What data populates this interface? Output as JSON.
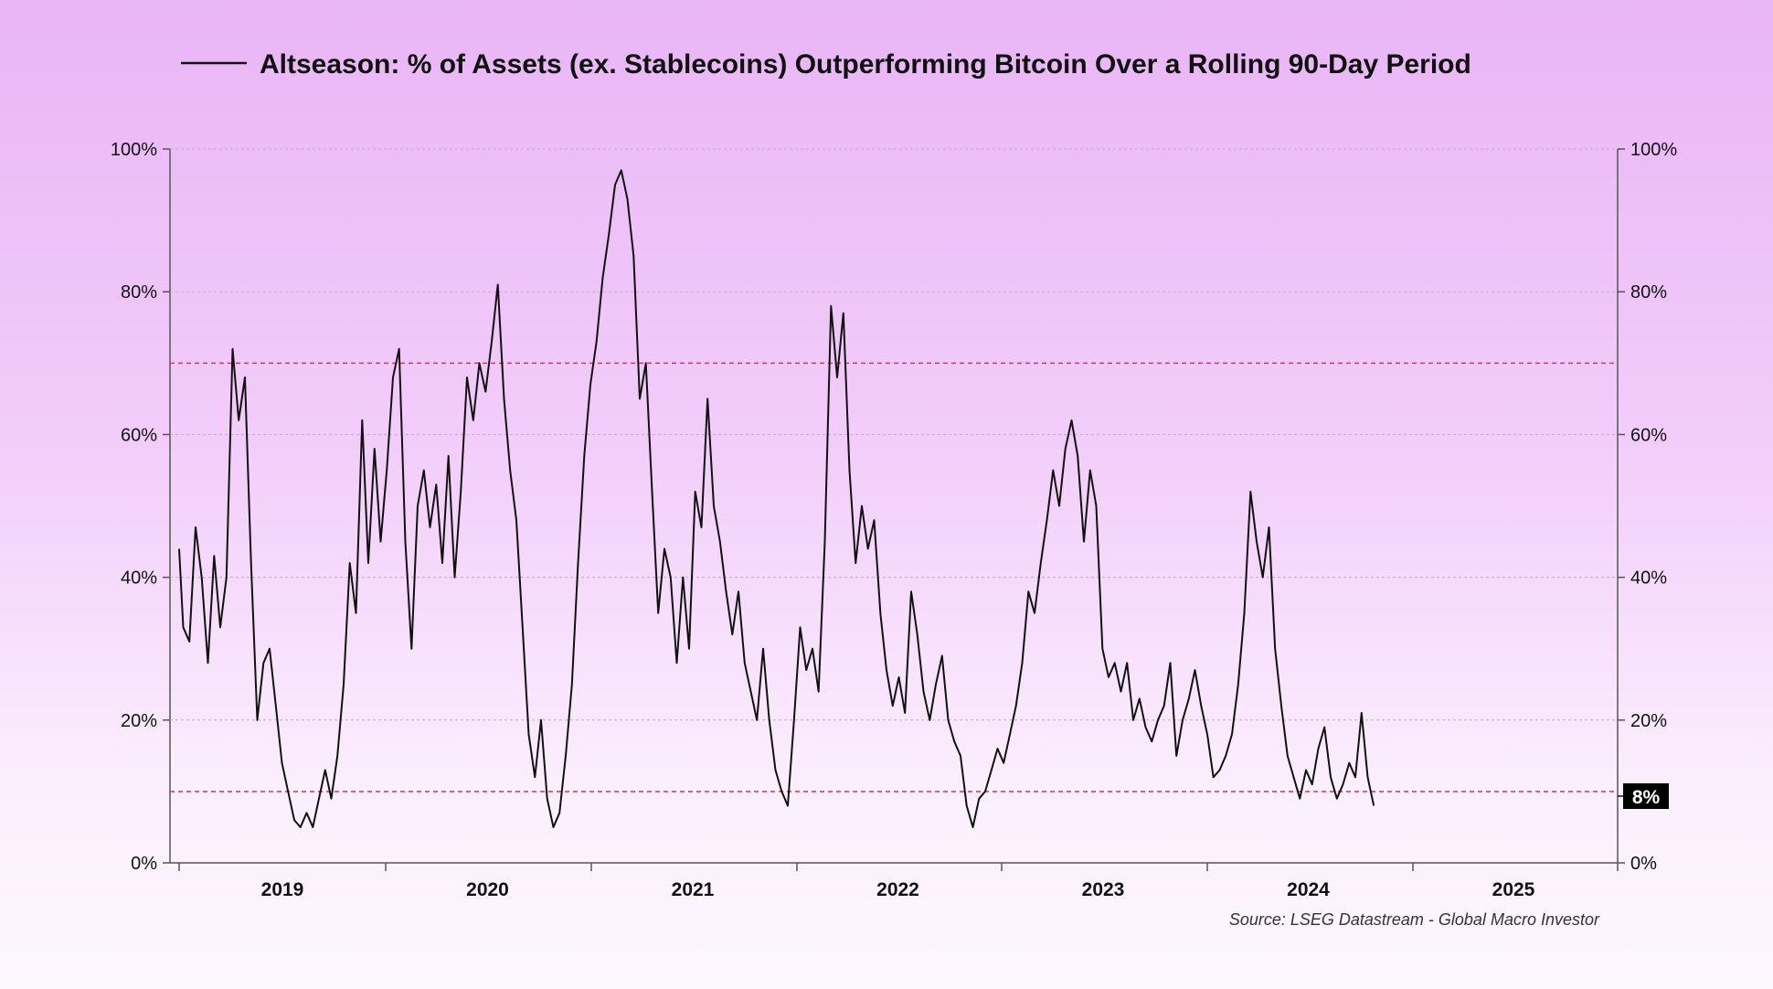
{
  "chart_data": {
    "type": "line",
    "title": "Altseason: % of Assets (ex. Stablecoins) Outperforming Bitcoin Over a Rolling 90-Day Period",
    "source": "Source: LSEG Datastream - Global Macro Investor",
    "ylim": [
      0,
      100
    ],
    "yticks": [
      {
        "value": 0,
        "label": "0%"
      },
      {
        "value": 20,
        "label": "20%"
      },
      {
        "value": 40,
        "label": "40%"
      },
      {
        "value": 60,
        "label": "60%"
      },
      {
        "value": 80,
        "label": "80%"
      },
      {
        "value": 100,
        "label": "100%"
      }
    ],
    "xlim": [
      2018.5,
      2025.5
    ],
    "x_year_labels": [
      "2019",
      "2020",
      "2021",
      "2022",
      "2023",
      "2024",
      "2025"
    ],
    "reference_lines": [
      {
        "value": 70,
        "color": "#e0405a"
      },
      {
        "value": 10,
        "color": "#e0405a"
      }
    ],
    "last_value_badge": "8%",
    "series": [
      {
        "name": "Altseason %",
        "color": "#111111",
        "points": [
          [
            2018.5,
            44
          ],
          [
            2018.52,
            33
          ],
          [
            2018.55,
            31
          ],
          [
            2018.58,
            47
          ],
          [
            2018.61,
            40
          ],
          [
            2018.64,
            28
          ],
          [
            2018.67,
            43
          ],
          [
            2018.7,
            33
          ],
          [
            2018.73,
            40
          ],
          [
            2018.76,
            72
          ],
          [
            2018.79,
            62
          ],
          [
            2018.82,
            68
          ],
          [
            2018.85,
            42
          ],
          [
            2018.88,
            20
          ],
          [
            2018.91,
            28
          ],
          [
            2018.94,
            30
          ],
          [
            2018.97,
            22
          ],
          [
            2019.0,
            14
          ],
          [
            2019.03,
            10
          ],
          [
            2019.06,
            6
          ],
          [
            2019.09,
            5
          ],
          [
            2019.12,
            7
          ],
          [
            2019.15,
            5
          ],
          [
            2019.18,
            9
          ],
          [
            2019.21,
            13
          ],
          [
            2019.24,
            9
          ],
          [
            2019.27,
            15
          ],
          [
            2019.3,
            25
          ],
          [
            2019.33,
            42
          ],
          [
            2019.36,
            35
          ],
          [
            2019.39,
            62
          ],
          [
            2019.42,
            42
          ],
          [
            2019.45,
            58
          ],
          [
            2019.48,
            45
          ],
          [
            2019.51,
            55
          ],
          [
            2019.54,
            68
          ],
          [
            2019.57,
            72
          ],
          [
            2019.6,
            45
          ],
          [
            2019.63,
            30
          ],
          [
            2019.66,
            50
          ],
          [
            2019.69,
            55
          ],
          [
            2019.72,
            47
          ],
          [
            2019.75,
            53
          ],
          [
            2019.78,
            42
          ],
          [
            2019.81,
            57
          ],
          [
            2019.84,
            40
          ],
          [
            2019.87,
            52
          ],
          [
            2019.9,
            68
          ],
          [
            2019.93,
            62
          ],
          [
            2019.96,
            70
          ],
          [
            2019.99,
            66
          ],
          [
            2020.02,
            73
          ],
          [
            2020.05,
            81
          ],
          [
            2020.08,
            65
          ],
          [
            2020.11,
            55
          ],
          [
            2020.14,
            48
          ],
          [
            2020.17,
            33
          ],
          [
            2020.2,
            18
          ],
          [
            2020.23,
            12
          ],
          [
            2020.26,
            20
          ],
          [
            2020.29,
            9
          ],
          [
            2020.32,
            5
          ],
          [
            2020.35,
            7
          ],
          [
            2020.38,
            15
          ],
          [
            2020.41,
            25
          ],
          [
            2020.44,
            42
          ],
          [
            2020.47,
            57
          ],
          [
            2020.5,
            67
          ],
          [
            2020.53,
            73
          ],
          [
            2020.56,
            82
          ],
          [
            2020.59,
            88
          ],
          [
            2020.62,
            95
          ],
          [
            2020.65,
            97
          ],
          [
            2020.68,
            93
          ],
          [
            2020.71,
            85
          ],
          [
            2020.74,
            65
          ],
          [
            2020.77,
            70
          ],
          [
            2020.8,
            52
          ],
          [
            2020.83,
            35
          ],
          [
            2020.86,
            44
          ],
          [
            2020.89,
            40
          ],
          [
            2020.92,
            28
          ],
          [
            2020.95,
            40
          ],
          [
            2020.98,
            30
          ],
          [
            2021.01,
            52
          ],
          [
            2021.04,
            47
          ],
          [
            2021.07,
            65
          ],
          [
            2021.1,
            50
          ],
          [
            2021.13,
            45
          ],
          [
            2021.16,
            38
          ],
          [
            2021.19,
            32
          ],
          [
            2021.22,
            38
          ],
          [
            2021.25,
            28
          ],
          [
            2021.28,
            24
          ],
          [
            2021.31,
            20
          ],
          [
            2021.34,
            30
          ],
          [
            2021.37,
            20
          ],
          [
            2021.4,
            13
          ],
          [
            2021.43,
            10
          ],
          [
            2021.46,
            8
          ],
          [
            2021.49,
            20
          ],
          [
            2021.52,
            33
          ],
          [
            2021.55,
            27
          ],
          [
            2021.58,
            30
          ],
          [
            2021.61,
            24
          ],
          [
            2021.64,
            45
          ],
          [
            2021.67,
            78
          ],
          [
            2021.7,
            68
          ],
          [
            2021.73,
            77
          ],
          [
            2021.76,
            55
          ],
          [
            2021.79,
            42
          ],
          [
            2021.82,
            50
          ],
          [
            2021.85,
            44
          ],
          [
            2021.88,
            48
          ],
          [
            2021.91,
            35
          ],
          [
            2021.94,
            27
          ],
          [
            2021.97,
            22
          ],
          [
            2022.0,
            26
          ],
          [
            2022.03,
            21
          ],
          [
            2022.06,
            38
          ],
          [
            2022.09,
            32
          ],
          [
            2022.12,
            24
          ],
          [
            2022.15,
            20
          ],
          [
            2022.18,
            25
          ],
          [
            2022.21,
            29
          ],
          [
            2022.24,
            20
          ],
          [
            2022.27,
            17
          ],
          [
            2022.3,
            15
          ],
          [
            2022.33,
            8
          ],
          [
            2022.36,
            5
          ],
          [
            2022.39,
            9
          ],
          [
            2022.42,
            10
          ],
          [
            2022.45,
            13
          ],
          [
            2022.48,
            16
          ],
          [
            2022.51,
            14
          ],
          [
            2022.54,
            18
          ],
          [
            2022.57,
            22
          ],
          [
            2022.6,
            28
          ],
          [
            2022.63,
            38
          ],
          [
            2022.66,
            35
          ],
          [
            2022.69,
            42
          ],
          [
            2022.72,
            48
          ],
          [
            2022.75,
            55
          ],
          [
            2022.78,
            50
          ],
          [
            2022.81,
            58
          ],
          [
            2022.84,
            62
          ],
          [
            2022.87,
            57
          ],
          [
            2022.9,
            45
          ],
          [
            2022.93,
            55
          ],
          [
            2022.96,
            50
          ],
          [
            2022.99,
            30
          ],
          [
            2023.02,
            26
          ],
          [
            2023.05,
            28
          ],
          [
            2023.08,
            24
          ],
          [
            2023.11,
            28
          ],
          [
            2023.14,
            20
          ],
          [
            2023.17,
            23
          ],
          [
            2023.2,
            19
          ],
          [
            2023.23,
            17
          ],
          [
            2023.26,
            20
          ],
          [
            2023.29,
            22
          ],
          [
            2023.32,
            28
          ],
          [
            2023.35,
            15
          ],
          [
            2023.38,
            20
          ],
          [
            2023.41,
            23
          ],
          [
            2023.44,
            27
          ],
          [
            2023.47,
            22
          ],
          [
            2023.5,
            18
          ],
          [
            2023.53,
            12
          ],
          [
            2023.56,
            13
          ],
          [
            2023.59,
            15
          ],
          [
            2023.62,
            18
          ],
          [
            2023.65,
            25
          ],
          [
            2023.68,
            35
          ],
          [
            2023.71,
            52
          ],
          [
            2023.74,
            45
          ],
          [
            2023.77,
            40
          ],
          [
            2023.8,
            47
          ],
          [
            2023.83,
            30
          ],
          [
            2023.86,
            22
          ],
          [
            2023.89,
            15
          ],
          [
            2023.92,
            12
          ],
          [
            2023.95,
            9
          ],
          [
            2023.98,
            13
          ],
          [
            2024.01,
            11
          ],
          [
            2024.04,
            16
          ],
          [
            2024.07,
            19
          ],
          [
            2024.1,
            12
          ],
          [
            2024.13,
            9
          ],
          [
            2024.16,
            11
          ],
          [
            2024.19,
            14
          ],
          [
            2024.22,
            12
          ],
          [
            2024.25,
            21
          ],
          [
            2024.28,
            12
          ],
          [
            2024.31,
            8
          ]
        ]
      }
    ]
  }
}
